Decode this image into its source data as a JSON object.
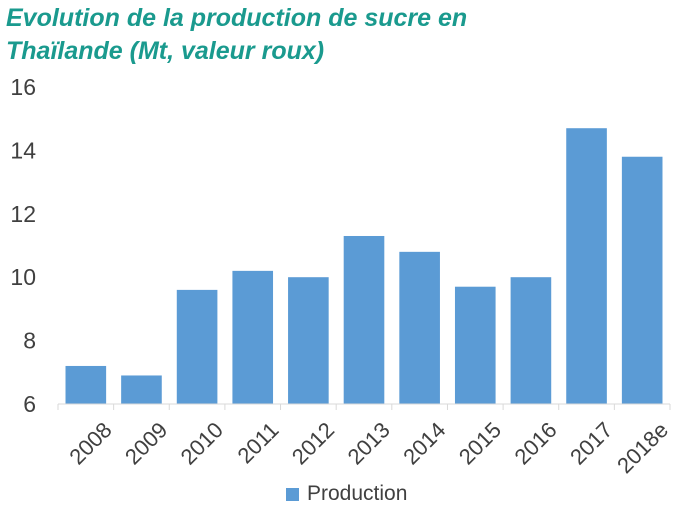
{
  "title_line1": "Evolution de la production de sucre en",
  "title_line2": "Thaïlande (Mt, valeur roux)",
  "chart_data": {
    "type": "bar",
    "categories": [
      "2008",
      "2009",
      "2010",
      "2011",
      "2012",
      "2013",
      "2014",
      "2015",
      "2016",
      "2017",
      "2018e"
    ],
    "series": [
      {
        "name": "Production",
        "values": [
          7.2,
          6.9,
          9.6,
          10.2,
          10.0,
          11.3,
          10.8,
          9.7,
          10.0,
          14.7,
          13.8
        ]
      }
    ],
    "y_ticks": [
      "6",
      "8",
      "10",
      "12",
      "14",
      "16"
    ],
    "ylim": [
      6,
      16
    ],
    "grid": false,
    "legend": "bottom",
    "bar_color": "#5b9bd5",
    "title_color": "#1a9a8e"
  }
}
